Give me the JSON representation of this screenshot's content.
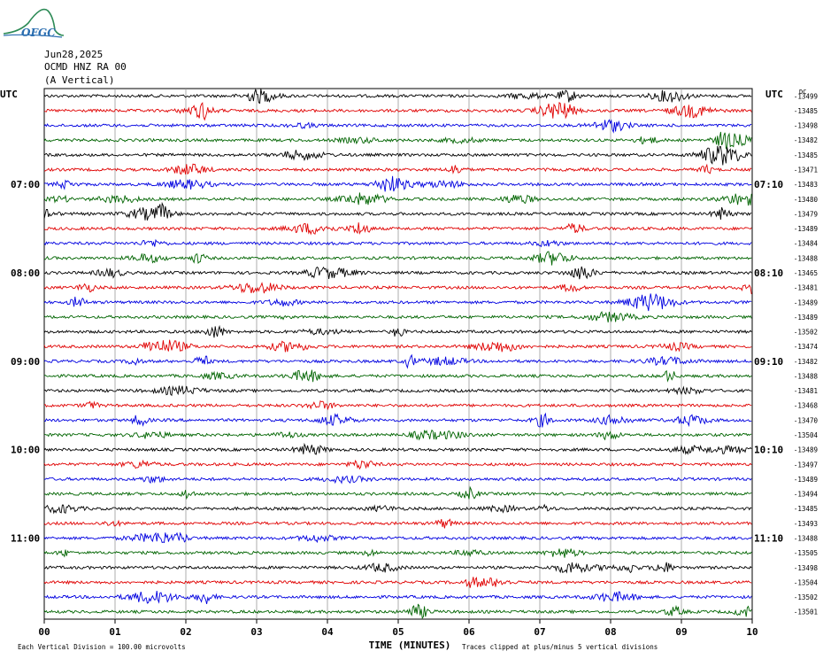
{
  "logo": {
    "text": "OFGC"
  },
  "header": {
    "date": "Jun28,2025",
    "station": "OCMD HNZ RA 00",
    "component": "(A Vertical)"
  },
  "colors": {
    "trace_cycle": [
      "#000000",
      "#e00000",
      "#0000e0",
      "#006400"
    ],
    "grid": "#9a9a9a"
  },
  "chart_data": {
    "type": "line",
    "title": "Jun28,2025 OCMD HNZ RA 00 (A Vertical)",
    "xlabel": "TIME (MINUTES)",
    "x_ticks": [
      "00",
      "01",
      "02",
      "03",
      "04",
      "05",
      "06",
      "07",
      "08",
      "09",
      "10"
    ],
    "xlim": [
      0,
      10
    ],
    "left_label": "UTC",
    "right_label": "UTC",
    "left_time_labels": [
      {
        "row": 6,
        "text": "07:00"
      },
      {
        "row": 12,
        "text": "08:00"
      },
      {
        "row": 18,
        "text": "09:00"
      },
      {
        "row": 24,
        "text": "10:00"
      },
      {
        "row": 30,
        "text": "11:00"
      }
    ],
    "right_time_labels": [
      {
        "row": 6,
        "text": "07:10"
      },
      {
        "row": 12,
        "text": "08:10"
      },
      {
        "row": 18,
        "text": "09:10"
      },
      {
        "row": 24,
        "text": "10:10"
      },
      {
        "row": 30,
        "text": "11:10"
      }
    ],
    "dc_label": "DC",
    "dc_offsets": [
      -13499,
      -13485,
      -13498,
      -13482,
      -13485,
      -13471,
      -13483,
      -13480,
      -13479,
      -13489,
      -13484,
      -13488,
      -13465,
      -13481,
      -13489,
      -13489,
      -13502,
      -13474,
      -13482,
      -13488,
      -13481,
      -13468,
      -13470,
      -13504,
      -13489,
      -13497,
      -13489,
      -13494,
      -13485,
      -13493,
      -13488,
      -13505,
      -13498,
      -13504,
      -13502,
      -13501
    ],
    "footer_left": "Each Vertical Division =  100.00 microvolts",
    "footer_right": "Traces clipped at plus/minus 5 vertical divisions"
  }
}
